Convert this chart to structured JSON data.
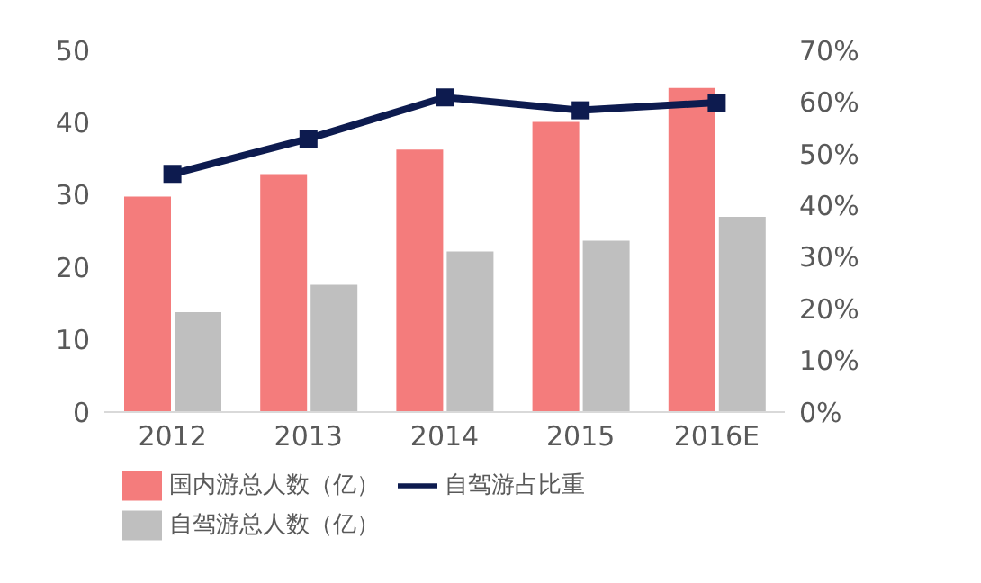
{
  "chart_data": {
    "type": "bar",
    "categories": [
      "2012",
      "2013",
      "2014",
      "2015",
      "2016E"
    ],
    "series": [
      {
        "name": "国内游总人数（亿）",
        "color": "#f47c7c",
        "values": [
          29.8,
          32.9,
          36.3,
          40.1,
          44.8
        ]
      },
      {
        "name": "自驾游总人数（亿）",
        "color": "#bfbfbf",
        "values": [
          13.8,
          17.6,
          22.2,
          23.7,
          27.0
        ]
      },
      {
        "name": "自驾游占比重",
        "type": "line",
        "axis": "y2",
        "color": "#0d1b4f",
        "values": [
          46.1,
          52.9,
          60.9,
          58.4,
          59.9
        ]
      }
    ],
    "ylim": [
      0,
      50
    ],
    "yticks": [
      0,
      10,
      20,
      30,
      40,
      50
    ],
    "y2lim": [
      0,
      70
    ],
    "y2ticks": [
      {
        "value": 0,
        "label": "0%"
      },
      {
        "value": 10,
        "label": "10%"
      },
      {
        "value": 20,
        "label": "20%"
      },
      {
        "value": 30,
        "label": "30%"
      },
      {
        "value": 40,
        "label": "40%"
      },
      {
        "value": 50,
        "label": "50%"
      },
      {
        "value": 60,
        "label": "60%"
      },
      {
        "value": 70,
        "label": "70%"
      }
    ],
    "grid": false,
    "legend": "bottom",
    "marker": "square",
    "line_style": "solid"
  }
}
